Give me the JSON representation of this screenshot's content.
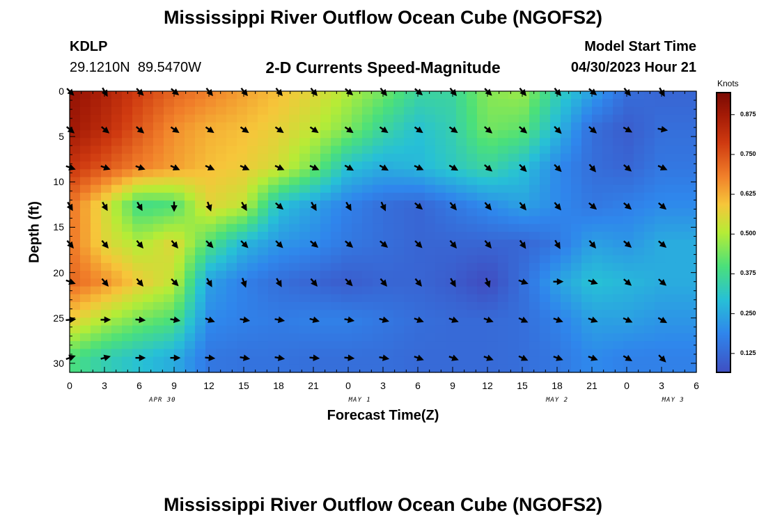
{
  "page_title": "Mississippi River Outflow Ocean Cube (NGOFS2)",
  "station": {
    "id": "KDLP",
    "coords": "29.1210N  89.5470W"
  },
  "model_start": {
    "label": "Model Start Time",
    "value": "04/30/2023 Hour 21"
  },
  "repeated_title": "Mississippi River Outflow Ocean Cube (NGOFS2)",
  "chart_data": {
    "type": "heatmap",
    "title": "2-D Currents Speed-Magnitude",
    "xlabel": "Forecast Time(Z)",
    "ylabel": "Depth (ft)",
    "xlim": [
      0,
      54
    ],
    "ylim": [
      31,
      0
    ],
    "x_ticks": [
      {
        "v": 0,
        "label": "0"
      },
      {
        "v": 3,
        "label": "3"
      },
      {
        "v": 6,
        "label": "6"
      },
      {
        "v": 9,
        "label": "9"
      },
      {
        "v": 12,
        "label": "12"
      },
      {
        "v": 15,
        "label": "15"
      },
      {
        "v": 18,
        "label": "18"
      },
      {
        "v": 21,
        "label": "21"
      },
      {
        "v": 24,
        "label": "0"
      },
      {
        "v": 27,
        "label": "3"
      },
      {
        "v": 30,
        "label": "6"
      },
      {
        "v": 33,
        "label": "9"
      },
      {
        "v": 36,
        "label": "12"
      },
      {
        "v": 39,
        "label": "15"
      },
      {
        "v": 42,
        "label": "18"
      },
      {
        "v": 45,
        "label": "21"
      },
      {
        "v": 48,
        "label": "0"
      },
      {
        "v": 51,
        "label": "3"
      },
      {
        "v": 54,
        "label": "6"
      }
    ],
    "day_labels": [
      {
        "v": 8,
        "label": "APR 30"
      },
      {
        "v": 25,
        "label": "MAY 1"
      },
      {
        "v": 42,
        "label": "MAY 2"
      },
      {
        "v": 52,
        "label": "MAY 3"
      }
    ],
    "y_ticks": [
      0,
      5,
      10,
      15,
      20,
      25,
      30
    ],
    "colorbar": {
      "label": "Knots",
      "min": 0.07,
      "max": 0.94,
      "ticks": [
        "0.125",
        "0.250",
        "0.375",
        "0.500",
        "0.625",
        "0.750",
        "0.875"
      ]
    },
    "depths": [
      0,
      4.2,
      8.4,
      12.6,
      16.8,
      21,
      25.2,
      29.4
    ],
    "times": [
      0,
      3,
      6,
      9,
      12,
      15,
      18,
      21,
      24,
      27,
      30,
      33,
      36,
      39,
      42,
      45,
      48,
      51
    ],
    "speed": [
      [
        0.9,
        0.85,
        0.78,
        0.72,
        0.68,
        0.64,
        0.6,
        0.56,
        0.5,
        0.44,
        0.36,
        0.36,
        0.46,
        0.48,
        0.34,
        0.24,
        0.14,
        0.12
      ],
      [
        0.88,
        0.82,
        0.74,
        0.66,
        0.62,
        0.6,
        0.57,
        0.52,
        0.45,
        0.36,
        0.3,
        0.34,
        0.44,
        0.42,
        0.28,
        0.14,
        0.1,
        0.14
      ],
      [
        0.8,
        0.74,
        0.68,
        0.64,
        0.6,
        0.58,
        0.54,
        0.44,
        0.3,
        0.26,
        0.28,
        0.32,
        0.36,
        0.3,
        0.2,
        0.14,
        0.12,
        0.16
      ],
      [
        0.7,
        0.55,
        0.38,
        0.4,
        0.56,
        0.52,
        0.3,
        0.24,
        0.18,
        0.14,
        0.12,
        0.16,
        0.2,
        0.24,
        0.2,
        0.16,
        0.18,
        0.2
      ],
      [
        0.7,
        0.56,
        0.5,
        0.56,
        0.4,
        0.28,
        0.22,
        0.2,
        0.16,
        0.14,
        0.12,
        0.12,
        0.12,
        0.12,
        0.16,
        0.24,
        0.22,
        0.26
      ],
      [
        0.72,
        0.66,
        0.58,
        0.52,
        0.24,
        0.18,
        0.14,
        0.12,
        0.1,
        0.12,
        0.12,
        0.1,
        0.06,
        0.14,
        0.24,
        0.3,
        0.28,
        0.26
      ],
      [
        0.58,
        0.5,
        0.44,
        0.4,
        0.2,
        0.18,
        0.17,
        0.18,
        0.18,
        0.16,
        0.14,
        0.13,
        0.13,
        0.14,
        0.18,
        0.24,
        0.24,
        0.22
      ],
      [
        0.4,
        0.34,
        0.3,
        0.26,
        0.16,
        0.15,
        0.15,
        0.14,
        0.14,
        0.14,
        0.13,
        0.13,
        0.13,
        0.14,
        0.16,
        0.2,
        0.18,
        0.18
      ]
    ],
    "direction_deg": [
      [
        135,
        150,
        135,
        130,
        140,
        140,
        140,
        140,
        130,
        140,
        130,
        140,
        135,
        140,
        140,
        130,
        140,
        150
      ],
      [
        130,
        130,
        130,
        125,
        125,
        125,
        125,
        125,
        125,
        125,
        125,
        125,
        130,
        130,
        135,
        130,
        120,
        100
      ],
      [
        110,
        110,
        110,
        115,
        115,
        115,
        115,
        115,
        120,
        120,
        115,
        120,
        130,
        135,
        135,
        140,
        130,
        115
      ],
      [
        150,
        150,
        150,
        180,
        160,
        150,
        130,
        150,
        150,
        155,
        130,
        140,
        140,
        140,
        140,
        130,
        130,
        130
      ],
      [
        140,
        140,
        140,
        140,
        135,
        135,
        135,
        130,
        130,
        130,
        135,
        140,
        140,
        145,
        150,
        140,
        130,
        130
      ],
      [
        110,
        140,
        140,
        135,
        150,
        160,
        150,
        140,
        135,
        140,
        140,
        150,
        160,
        110,
        90,
        110,
        130,
        130
      ],
      [
        85,
        90,
        95,
        100,
        110,
        100,
        100,
        105,
        100,
        105,
        110,
        110,
        110,
        115,
        110,
        110,
        115,
        120
      ],
      [
        70,
        75,
        90,
        90,
        95,
        100,
        100,
        95,
        95,
        100,
        110,
        110,
        110,
        115,
        110,
        110,
        120,
        135
      ]
    ]
  }
}
